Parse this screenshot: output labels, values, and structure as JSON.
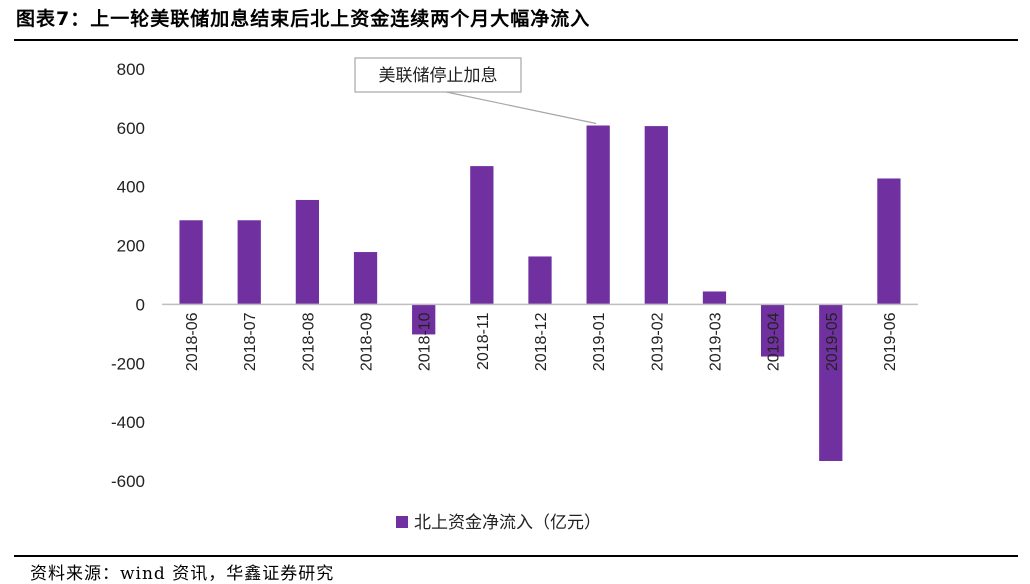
{
  "title": "图表7：上一轮美联储加息结束后北上资金连续两个月大幅净流入",
  "source": "资料来源：wind 资讯，华鑫证券研究",
  "colors": {
    "bar": "#7030A0",
    "axis": "#bfbfbf",
    "text": "#222222"
  },
  "chart_data": {
    "type": "bar",
    "title": "",
    "xlabel": "",
    "ylabel": "",
    "ylim": [
      -600,
      800
    ],
    "yticks": [
      800,
      600,
      400,
      200,
      0,
      -200,
      -400,
      -600
    ],
    "grid": false,
    "legend_position": "bottom",
    "categories": [
      "2018-06",
      "2018-07",
      "2018-08",
      "2018-09",
      "2018-10",
      "2018-11",
      "2018-12",
      "2019-01",
      "2019-02",
      "2019-03",
      "2019-04",
      "2019-05",
      "2019-06"
    ],
    "series": [
      {
        "name": "北上资金净流入（亿元）",
        "values": [
          286,
          286,
          355,
          178,
          -102,
          470,
          163,
          608,
          606,
          44,
          -177,
          -532,
          428
        ]
      }
    ],
    "annotations": [
      {
        "text": "美联储停止加息",
        "category": "2019-01"
      }
    ]
  }
}
